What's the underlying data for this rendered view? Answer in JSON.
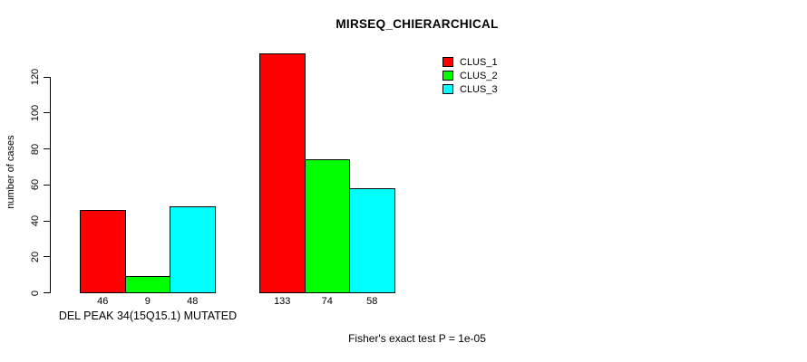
{
  "chart_data": {
    "type": "bar",
    "title": "MIRSEQ_CHIERARCHICAL",
    "ylabel": "number of cases",
    "xlabel": "DEL PEAK 34(15Q15.1) MUTATED",
    "annotation": "Fisher's exact test P = 1e-05",
    "categories": [
      "DEL PEAK 34(15Q15.1) MUTATED",
      ""
    ],
    "series": [
      {
        "name": "CLUS_1",
        "color": "#FF0000",
        "values": [
          46,
          133
        ]
      },
      {
        "name": "CLUS_2",
        "color": "#00FF00",
        "values": [
          9,
          74
        ]
      },
      {
        "name": "CLUS_3",
        "color": "#00FFFF",
        "values": [
          48,
          58
        ]
      }
    ],
    "bar_labels": [
      [
        46,
        9,
        48
      ],
      [
        133,
        74,
        58
      ]
    ],
    "yticks": [
      0,
      20,
      40,
      60,
      80,
      100,
      120
    ],
    "ylim": [
      0,
      140
    ],
    "grid": false,
    "legend_position": "top-right",
    "axis_color": "#000000",
    "background_color": "#FFFFFF"
  }
}
